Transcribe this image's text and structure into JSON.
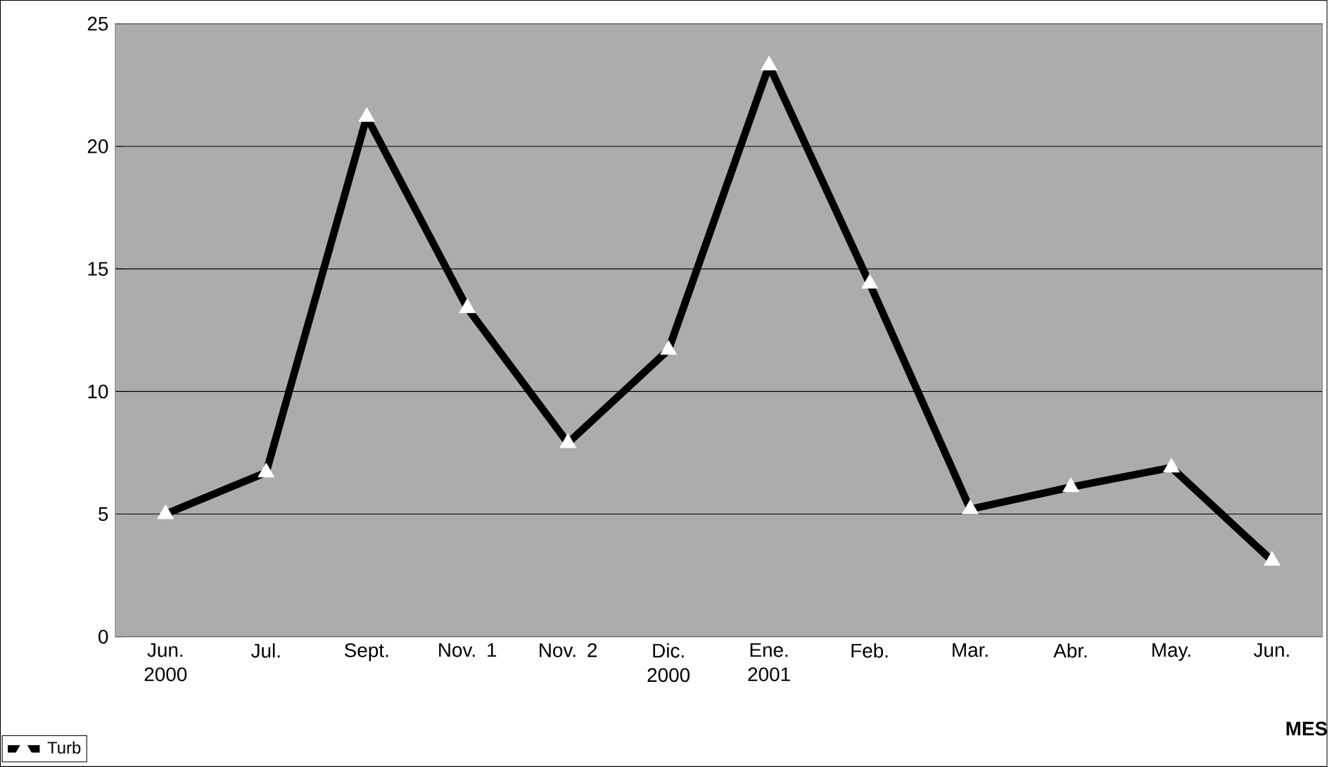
{
  "chart_data": {
    "type": "line",
    "xlabel": "MES",
    "categories": [
      "Jun. 2000",
      "Jul.",
      "Sept.",
      "Nov. 1",
      "Nov. 2",
      "Dic. 2000",
      "Ene. 2001",
      "Feb.",
      "Mar.",
      "Abr.",
      "May.",
      "Jun."
    ],
    "series": [
      {
        "name": "Turb",
        "color": "#000000",
        "values": [
          5.0,
          6.7,
          21.2,
          13.4,
          7.9,
          11.7,
          23.3,
          14.4,
          5.2,
          6.1,
          6.9,
          3.1
        ]
      }
    ],
    "ylim": [
      0,
      25
    ],
    "yticks": [
      0,
      5,
      10,
      15,
      20,
      25
    ],
    "grid": "y",
    "legend": "bottom left",
    "marker": "triangle",
    "line_style": "solid"
  }
}
